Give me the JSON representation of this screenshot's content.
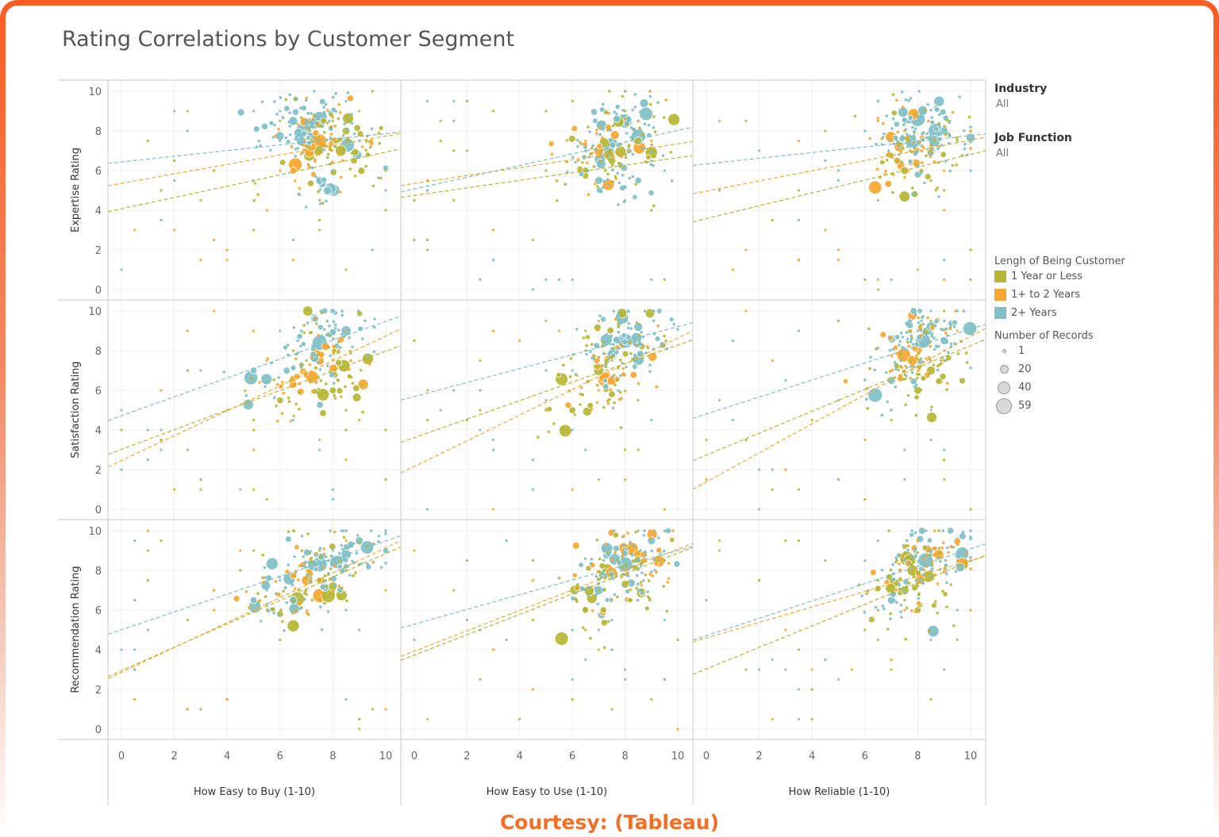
{
  "title": "Rating Correlations by Customer Segment",
  "filters": [
    {
      "label": "Industry",
      "value": "All"
    },
    {
      "label": "Job Function",
      "value": "All"
    }
  ],
  "color_legend": {
    "title": "Lengh of Being Customer",
    "items": [
      {
        "label": "1 Year or Less",
        "color": "#b5b633"
      },
      {
        "label": "1+ to 2 Years",
        "color": "#f7a72f"
      },
      {
        "label": "2+ Years",
        "color": "#7fbfc6"
      }
    ]
  },
  "size_legend": {
    "title": "Number of Records",
    "items": [
      "1",
      "20",
      "40",
      "59"
    ]
  },
  "courtesy": "Courtesy: (Tableau)",
  "chart_data": {
    "type": "scatter",
    "title": "Rating Correlations by Customer Segment",
    "columns": [
      "How Easy to Buy (1-10)",
      "How Easy to Use (1-10)",
      "How Reliable (1-10)"
    ],
    "rows": [
      "Expertise Rating",
      "Satisfaction Rating",
      "Recommendation Rating"
    ],
    "xlim": [
      0,
      10
    ],
    "ylim": [
      0,
      10
    ],
    "x_ticks": [
      "0",
      "2",
      "4",
      "6",
      "8",
      "10"
    ],
    "y_ticks": [
      "0",
      "2",
      "4",
      "6",
      "8",
      "10"
    ],
    "grid": true,
    "trend_lines": "linear, per series, dashed",
    "series_names": [
      "1 Year or Less",
      "1+ to 2 Years",
      "2+ Years"
    ],
    "series_colors": [
      "#b5b633",
      "#f7a72f",
      "#7fbfc6"
    ],
    "panels": [
      {
        "row": 0,
        "col": 0,
        "trends": [
          [
            4.0,
            7.0
          ],
          [
            5.3,
            7.8
          ],
          [
            6.4,
            7.9
          ]
        ],
        "clusters": [
          [
            7.5,
            8.6,
            10,
            2
          ],
          [
            6.8,
            7.5,
            5,
            2
          ],
          [
            8.3,
            7.0,
            6,
            0
          ],
          [
            7.2,
            7.2,
            4,
            1
          ],
          [
            8.5,
            8.0,
            3,
            0
          ],
          [
            6.5,
            6.0,
            2,
            1
          ],
          [
            8.8,
            6.5,
            2,
            0
          ],
          [
            7.5,
            5.5,
            3,
            2
          ],
          [
            6.5,
            8.5,
            4,
            2
          ]
        ]
      },
      {
        "row": 0,
        "col": 1,
        "trends": [
          [
            4.7,
            6.7
          ],
          [
            5.3,
            7.4
          ],
          [
            5.0,
            8.1
          ]
        ],
        "clusters": [
          [
            8.0,
            8.5,
            9,
            2
          ],
          [
            7.5,
            7.4,
            6,
            2
          ],
          [
            7.0,
            7.0,
            5,
            1
          ],
          [
            7.5,
            6.5,
            3,
            0
          ],
          [
            8.5,
            7.5,
            3,
            0
          ],
          [
            7.0,
            5.5,
            3,
            2
          ],
          [
            8.5,
            5.5,
            2,
            2
          ],
          [
            6.5,
            6.0,
            2,
            0
          ]
        ]
      },
      {
        "row": 0,
        "col": 2,
        "trends": [
          [
            3.5,
            6.9
          ],
          [
            4.9,
            7.6
          ],
          [
            6.3,
            7.8
          ]
        ],
        "clusters": [
          [
            8.0,
            8.6,
            10,
            2
          ],
          [
            7.8,
            7.4,
            6,
            2
          ],
          [
            7.3,
            7.2,
            5,
            1
          ],
          [
            8.5,
            7.0,
            4,
            0
          ],
          [
            7.5,
            6.0,
            3,
            0
          ],
          [
            9.0,
            8.0,
            3,
            2
          ],
          [
            8.0,
            5.8,
            2,
            2
          ]
        ]
      },
      {
        "row": 1,
        "col": 0,
        "trends": [
          [
            2.9,
            8.1
          ],
          [
            2.3,
            8.9
          ],
          [
            4.6,
            9.6
          ]
        ],
        "clusters": [
          [
            7.5,
            8.4,
            10,
            2
          ],
          [
            8.5,
            9.0,
            5,
            2
          ],
          [
            7.5,
            7.5,
            4,
            1
          ],
          [
            8.0,
            7.0,
            4,
            0
          ],
          [
            6.5,
            6.3,
            3,
            1
          ],
          [
            8.0,
            6.0,
            2,
            0
          ],
          [
            6.0,
            5.5,
            2,
            0
          ],
          [
            5.0,
            7.0,
            2,
            2
          ]
        ]
      },
      {
        "row": 1,
        "col": 1,
        "trends": [
          [
            3.5,
            8.4
          ],
          [
            2.0,
            8.8
          ],
          [
            5.6,
            9.3
          ]
        ],
        "clusters": [
          [
            8.0,
            8.5,
            10,
            2
          ],
          [
            7.5,
            7.8,
            5,
            2
          ],
          [
            7.0,
            7.0,
            5,
            0
          ],
          [
            7.5,
            6.5,
            4,
            1
          ],
          [
            8.5,
            9.2,
            4,
            2
          ],
          [
            7.5,
            5.8,
            2,
            0
          ],
          [
            6.0,
            5.0,
            2,
            0
          ]
        ]
      },
      {
        "row": 1,
        "col": 2,
        "trends": [
          [
            2.6,
            8.4
          ],
          [
            1.2,
            8.9
          ],
          [
            4.7,
            9.2
          ]
        ],
        "clusters": [
          [
            8.2,
            8.5,
            10,
            2
          ],
          [
            8.5,
            9.2,
            5,
            2
          ],
          [
            7.8,
            7.5,
            5,
            1
          ],
          [
            8.5,
            7.0,
            4,
            0
          ],
          [
            7.0,
            6.5,
            3,
            2
          ],
          [
            8.0,
            6.0,
            3,
            0
          ],
          [
            9.0,
            8.5,
            3,
            2
          ]
        ]
      },
      {
        "row": 2,
        "col": 0,
        "trends": [
          [
            2.8,
            9.0
          ],
          [
            2.7,
            9.3
          ],
          [
            4.9,
            9.6
          ]
        ],
        "clusters": [
          [
            7.5,
            8.3,
            10,
            2
          ],
          [
            8.5,
            8.8,
            5,
            2
          ],
          [
            7.0,
            7.5,
            5,
            1
          ],
          [
            8.0,
            7.2,
            4,
            0
          ],
          [
            6.5,
            6.5,
            3,
            2
          ],
          [
            9.0,
            9.5,
            3,
            2
          ],
          [
            6.0,
            5.8,
            2,
            0
          ],
          [
            5.0,
            6.5,
            2,
            2
          ]
        ]
      },
      {
        "row": 2,
        "col": 1,
        "trends": [
          [
            3.6,
            9.0
          ],
          [
            3.8,
            9.2
          ],
          [
            5.2,
            9.1
          ]
        ],
        "clusters": [
          [
            8.0,
            8.3,
            10,
            2
          ],
          [
            7.5,
            7.8,
            6,
            0
          ],
          [
            8.5,
            8.8,
            4,
            1
          ],
          [
            7.0,
            7.0,
            4,
            2
          ],
          [
            8.0,
            7.3,
            3,
            0
          ],
          [
            6.5,
            6.0,
            2,
            0
          ],
          [
            9.0,
            9.5,
            3,
            2
          ]
        ]
      },
      {
        "row": 2,
        "col": 2,
        "trends": [
          [
            2.9,
            8.6
          ],
          [
            4.5,
            8.6
          ],
          [
            4.6,
            9.2
          ]
        ],
        "clusters": [
          [
            8.3,
            8.5,
            10,
            2
          ],
          [
            7.8,
            8.0,
            6,
            0
          ],
          [
            8.8,
            8.8,
            5,
            1
          ],
          [
            7.5,
            7.0,
            4,
            0
          ],
          [
            7.0,
            6.5,
            3,
            2
          ],
          [
            9.5,
            9.5,
            3,
            2
          ],
          [
            8.0,
            6.0,
            2,
            0
          ]
        ]
      }
    ]
  }
}
